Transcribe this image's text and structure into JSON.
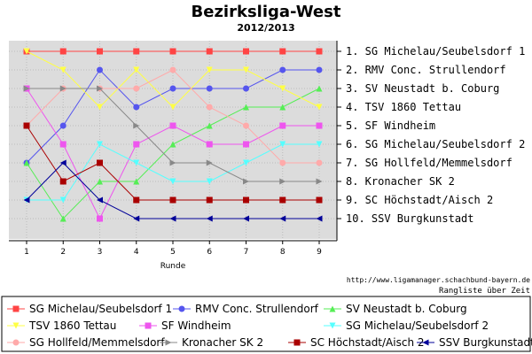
{
  "chart_data": {
    "type": "line",
    "title": "Bezirksliga-West",
    "subtitle": "2012/2013",
    "xlabel": "Runde",
    "x": [
      1,
      2,
      3,
      4,
      5,
      6,
      7,
      8,
      9
    ],
    "ylim": [
      1,
      10
    ],
    "y_inverted": true,
    "grid": true,
    "rank_labels": [
      "1. SG Michelau/Seubelsdorf 1",
      "2. RMV Conc. Strullendorf",
      "3. SV Neustadt b. Coburg",
      "4. TSV 1860 Tettau",
      "5. SF Windheim",
      "6. SG Michelau/Seubelsdorf 2",
      "7. SG Hollfeld/Memmelsdorf",
      "8. Kronacher SK 2",
      "9. SC Höchstadt/Aisch 2",
      "10. SSV Burgkunstadt"
    ],
    "url_text": "http://www.ligamanager.schachbund-bayern.de",
    "footer_text": "Rangliste über Zeit",
    "legend_position": "bottom",
    "series": [
      {
        "name": "SG Michelau/Seubelsdorf 1",
        "color": "#ff4444",
        "marker": "square",
        "values": [
          1,
          1,
          1,
          1,
          1,
          1,
          1,
          1,
          1
        ]
      },
      {
        "name": "RMV Conc. Strullendorf",
        "color": "#5555ee",
        "marker": "circle",
        "values": [
          7,
          5,
          2,
          4,
          3,
          3,
          3,
          2,
          2
        ]
      },
      {
        "name": "SV Neustadt b. Coburg",
        "color": "#55ee55",
        "marker": "triangle-up",
        "values": [
          7,
          10,
          8,
          8,
          6,
          5,
          4,
          4,
          3
        ]
      },
      {
        "name": "TSV 1860 Tettau",
        "color": "#ffff44",
        "marker": "triangle-down",
        "values": [
          1,
          2,
          4,
          2,
          4,
          2,
          2,
          3,
          4
        ]
      },
      {
        "name": "SF Windheim",
        "color": "#ee55ee",
        "marker": "square",
        "values": [
          3,
          6,
          10,
          6,
          5,
          6,
          6,
          5,
          5
        ]
      },
      {
        "name": "SG Michelau/Seubelsdorf 2",
        "color": "#55ffff",
        "marker": "triangle-down",
        "values": [
          9,
          9,
          6,
          7,
          8,
          8,
          7,
          6,
          6
        ]
      },
      {
        "name": "SG Hollfeld/Memmelsdorf",
        "color": "#ffaaaa",
        "marker": "circle",
        "values": [
          5,
          3,
          3,
          3,
          2,
          4,
          5,
          7,
          7
        ]
      },
      {
        "name": "Kronacher SK 2",
        "color": "#888888",
        "marker": "triangle-right",
        "values": [
          3,
          3,
          3,
          5,
          7,
          7,
          8,
          8,
          8
        ]
      },
      {
        "name": "SC Höchstadt/Aisch 2",
        "color": "#aa0000",
        "marker": "square",
        "values": [
          5,
          8,
          7,
          9,
          9,
          9,
          9,
          9,
          9
        ]
      },
      {
        "name": "SSV Burgkunstadt",
        "color": "#000099",
        "marker": "triangle-left",
        "values": [
          9,
          7,
          9,
          10,
          10,
          10,
          10,
          10,
          10
        ]
      }
    ]
  }
}
